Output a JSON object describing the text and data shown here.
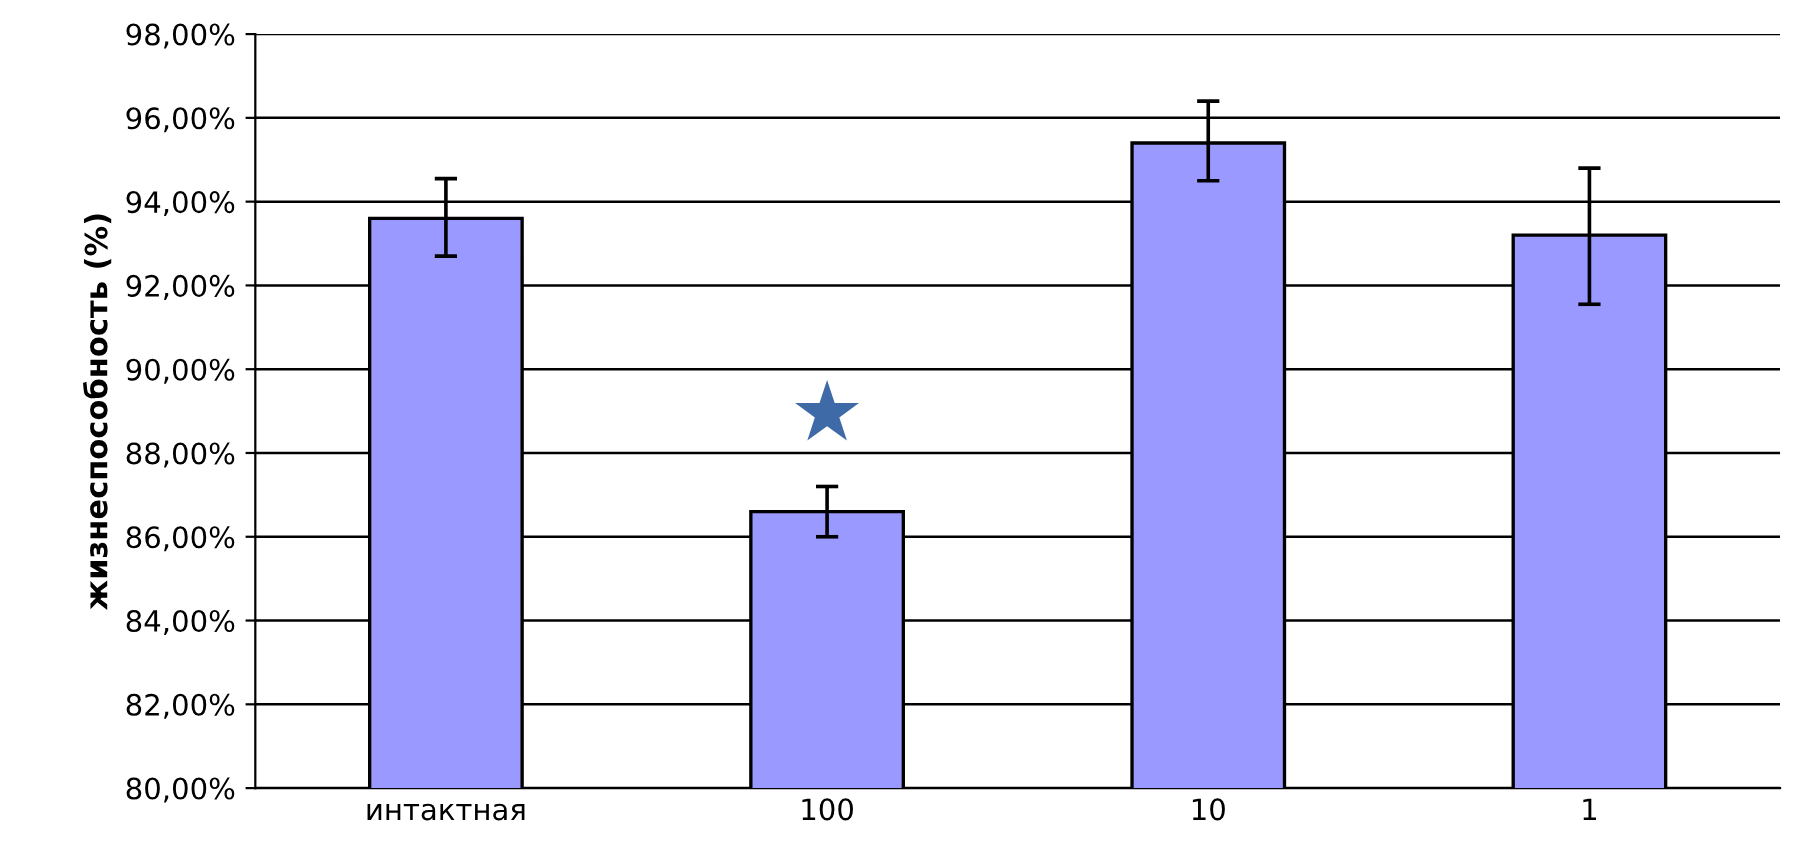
{
  "chart_data": {
    "type": "bar",
    "ylabel": "жизнеспособность (%)",
    "categories": [
      "интактная",
      "100",
      "10",
      "1"
    ],
    "values": [
      93.6,
      86.6,
      95.4,
      93.2
    ],
    "errors": [
      [
        92.7,
        94.55
      ],
      [
        86.0,
        87.2
      ],
      [
        94.5,
        96.4
      ],
      [
        91.55,
        94.8
      ]
    ],
    "color": "#9999ff",
    "ylim": [
      80,
      98
    ],
    "yticks": [
      {
        "value": 80,
        "label": "80,00%"
      },
      {
        "value": 82,
        "label": "82,00%"
      },
      {
        "value": 84,
        "label": "84,00%"
      },
      {
        "value": 86,
        "label": "86,00%"
      },
      {
        "value": 88,
        "label": "88,00%"
      },
      {
        "value": 90,
        "label": "90,00%"
      },
      {
        "value": 92,
        "label": "92,00%"
      },
      {
        "value": 94,
        "label": "94,00%"
      },
      {
        "value": 96,
        "label": "96,00%"
      },
      {
        "value": 98,
        "label": "98,00%"
      }
    ],
    "grid": "y",
    "annotations": [
      "★"
    ]
  }
}
